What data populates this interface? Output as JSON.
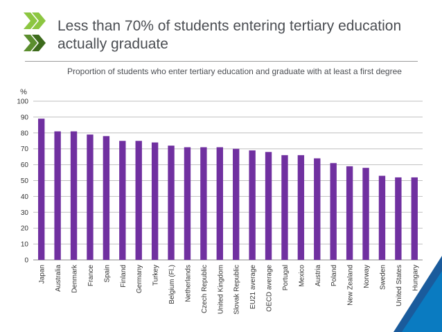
{
  "slide": {
    "title": "Less than 70% of students entering tertiary education actually graduate"
  },
  "logo": {
    "colors": [
      "#8cc641",
      "#5b8e2e",
      "#3d6b1c"
    ]
  },
  "chart_data": {
    "type": "bar",
    "title": "Proportion of students who enter tertiary education and graduate with at least a first degree",
    "ylabel": "%",
    "xlabel": "",
    "ylim": [
      0,
      100
    ],
    "yticks": [
      0,
      10,
      20,
      30,
      40,
      50,
      60,
      70,
      80,
      90,
      100
    ],
    "grid": true,
    "bar_color": "#7030a0",
    "categories": [
      "Japan",
      "Australia",
      "Denmark",
      "France",
      "Spain",
      "Finland",
      "Germany",
      "Turkey",
      "Belgium (Fl.)",
      "Netherlands",
      "Czech Republic",
      "United Kingdom",
      "Slovak Republic",
      "EU21 average",
      "OECD average",
      "Portugal",
      "Mexico",
      "Austria",
      "Poland",
      "New Zealand",
      "Norway",
      "Sweden",
      "United States",
      "Hungary"
    ],
    "values": [
      89,
      81,
      81,
      79,
      78,
      75,
      75,
      74,
      72,
      71,
      71,
      71,
      70,
      69,
      68,
      66,
      66,
      64,
      61,
      59,
      58,
      53,
      52,
      52
    ]
  },
  "corner_colors": [
    "#1a5b9c",
    "#0a7bc1"
  ]
}
